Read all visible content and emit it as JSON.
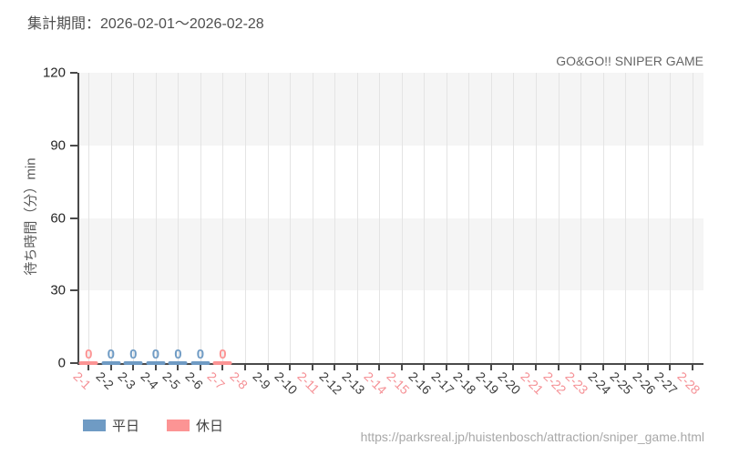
{
  "header": {
    "period_label": "集計期間：2026-02-01～2026-02-28"
  },
  "footer": {
    "url": "https://parksreal.jp/huistenbosch/attraction/sniper_game.html"
  },
  "colors": {
    "weekday": "#6f9bc4",
    "holiday": "#fc9494",
    "weekday_axis_label": "#3d3d3d",
    "holiday_axis_label": "#f59095",
    "band_gray": "#f5f5f5",
    "band_white": "#ffffff",
    "grid_line": "#e4e4e4",
    "axis": "#4a4a4a",
    "y_tick_label": "#262626"
  },
  "chart_data": {
    "type": "bar",
    "title": "GO&GO!! SNIPER GAME",
    "ylabel": "待ち時間（分）min",
    "xlabel": "",
    "ylim": [
      0,
      120
    ],
    "yticks": [
      0,
      30,
      60,
      90,
      120
    ],
    "grid": "horizontal-bands-and-vertical-lines",
    "legend_position": "bottom-left",
    "legend": [
      {
        "name": "平日",
        "type": "weekday"
      },
      {
        "name": "休日",
        "type": "holiday"
      }
    ],
    "days": [
      {
        "label": "2-1",
        "type": "holiday",
        "value": 0
      },
      {
        "label": "2-2",
        "type": "weekday",
        "value": 0
      },
      {
        "label": "2-3",
        "type": "weekday",
        "value": 0
      },
      {
        "label": "2-4",
        "type": "weekday",
        "value": 0
      },
      {
        "label": "2-5",
        "type": "weekday",
        "value": 0
      },
      {
        "label": "2-6",
        "type": "weekday",
        "value": 0
      },
      {
        "label": "2-7",
        "type": "holiday",
        "value": 0
      },
      {
        "label": "2-8",
        "type": "holiday",
        "value": null
      },
      {
        "label": "2-9",
        "type": "weekday",
        "value": null
      },
      {
        "label": "2-10",
        "type": "weekday",
        "value": null
      },
      {
        "label": "2-11",
        "type": "holiday",
        "value": null
      },
      {
        "label": "2-12",
        "type": "weekday",
        "value": null
      },
      {
        "label": "2-13",
        "type": "weekday",
        "value": null
      },
      {
        "label": "2-14",
        "type": "holiday",
        "value": null
      },
      {
        "label": "2-15",
        "type": "holiday",
        "value": null
      },
      {
        "label": "2-16",
        "type": "weekday",
        "value": null
      },
      {
        "label": "2-17",
        "type": "weekday",
        "value": null
      },
      {
        "label": "2-18",
        "type": "weekday",
        "value": null
      },
      {
        "label": "2-19",
        "type": "weekday",
        "value": null
      },
      {
        "label": "2-20",
        "type": "weekday",
        "value": null
      },
      {
        "label": "2-21",
        "type": "holiday",
        "value": null
      },
      {
        "label": "2-22",
        "type": "holiday",
        "value": null
      },
      {
        "label": "2-23",
        "type": "holiday",
        "value": null
      },
      {
        "label": "2-24",
        "type": "weekday",
        "value": null
      },
      {
        "label": "2-25",
        "type": "weekday",
        "value": null
      },
      {
        "label": "2-26",
        "type": "weekday",
        "value": null
      },
      {
        "label": "2-27",
        "type": "weekday",
        "value": null
      },
      {
        "label": "2-28",
        "type": "holiday",
        "value": null
      }
    ]
  }
}
